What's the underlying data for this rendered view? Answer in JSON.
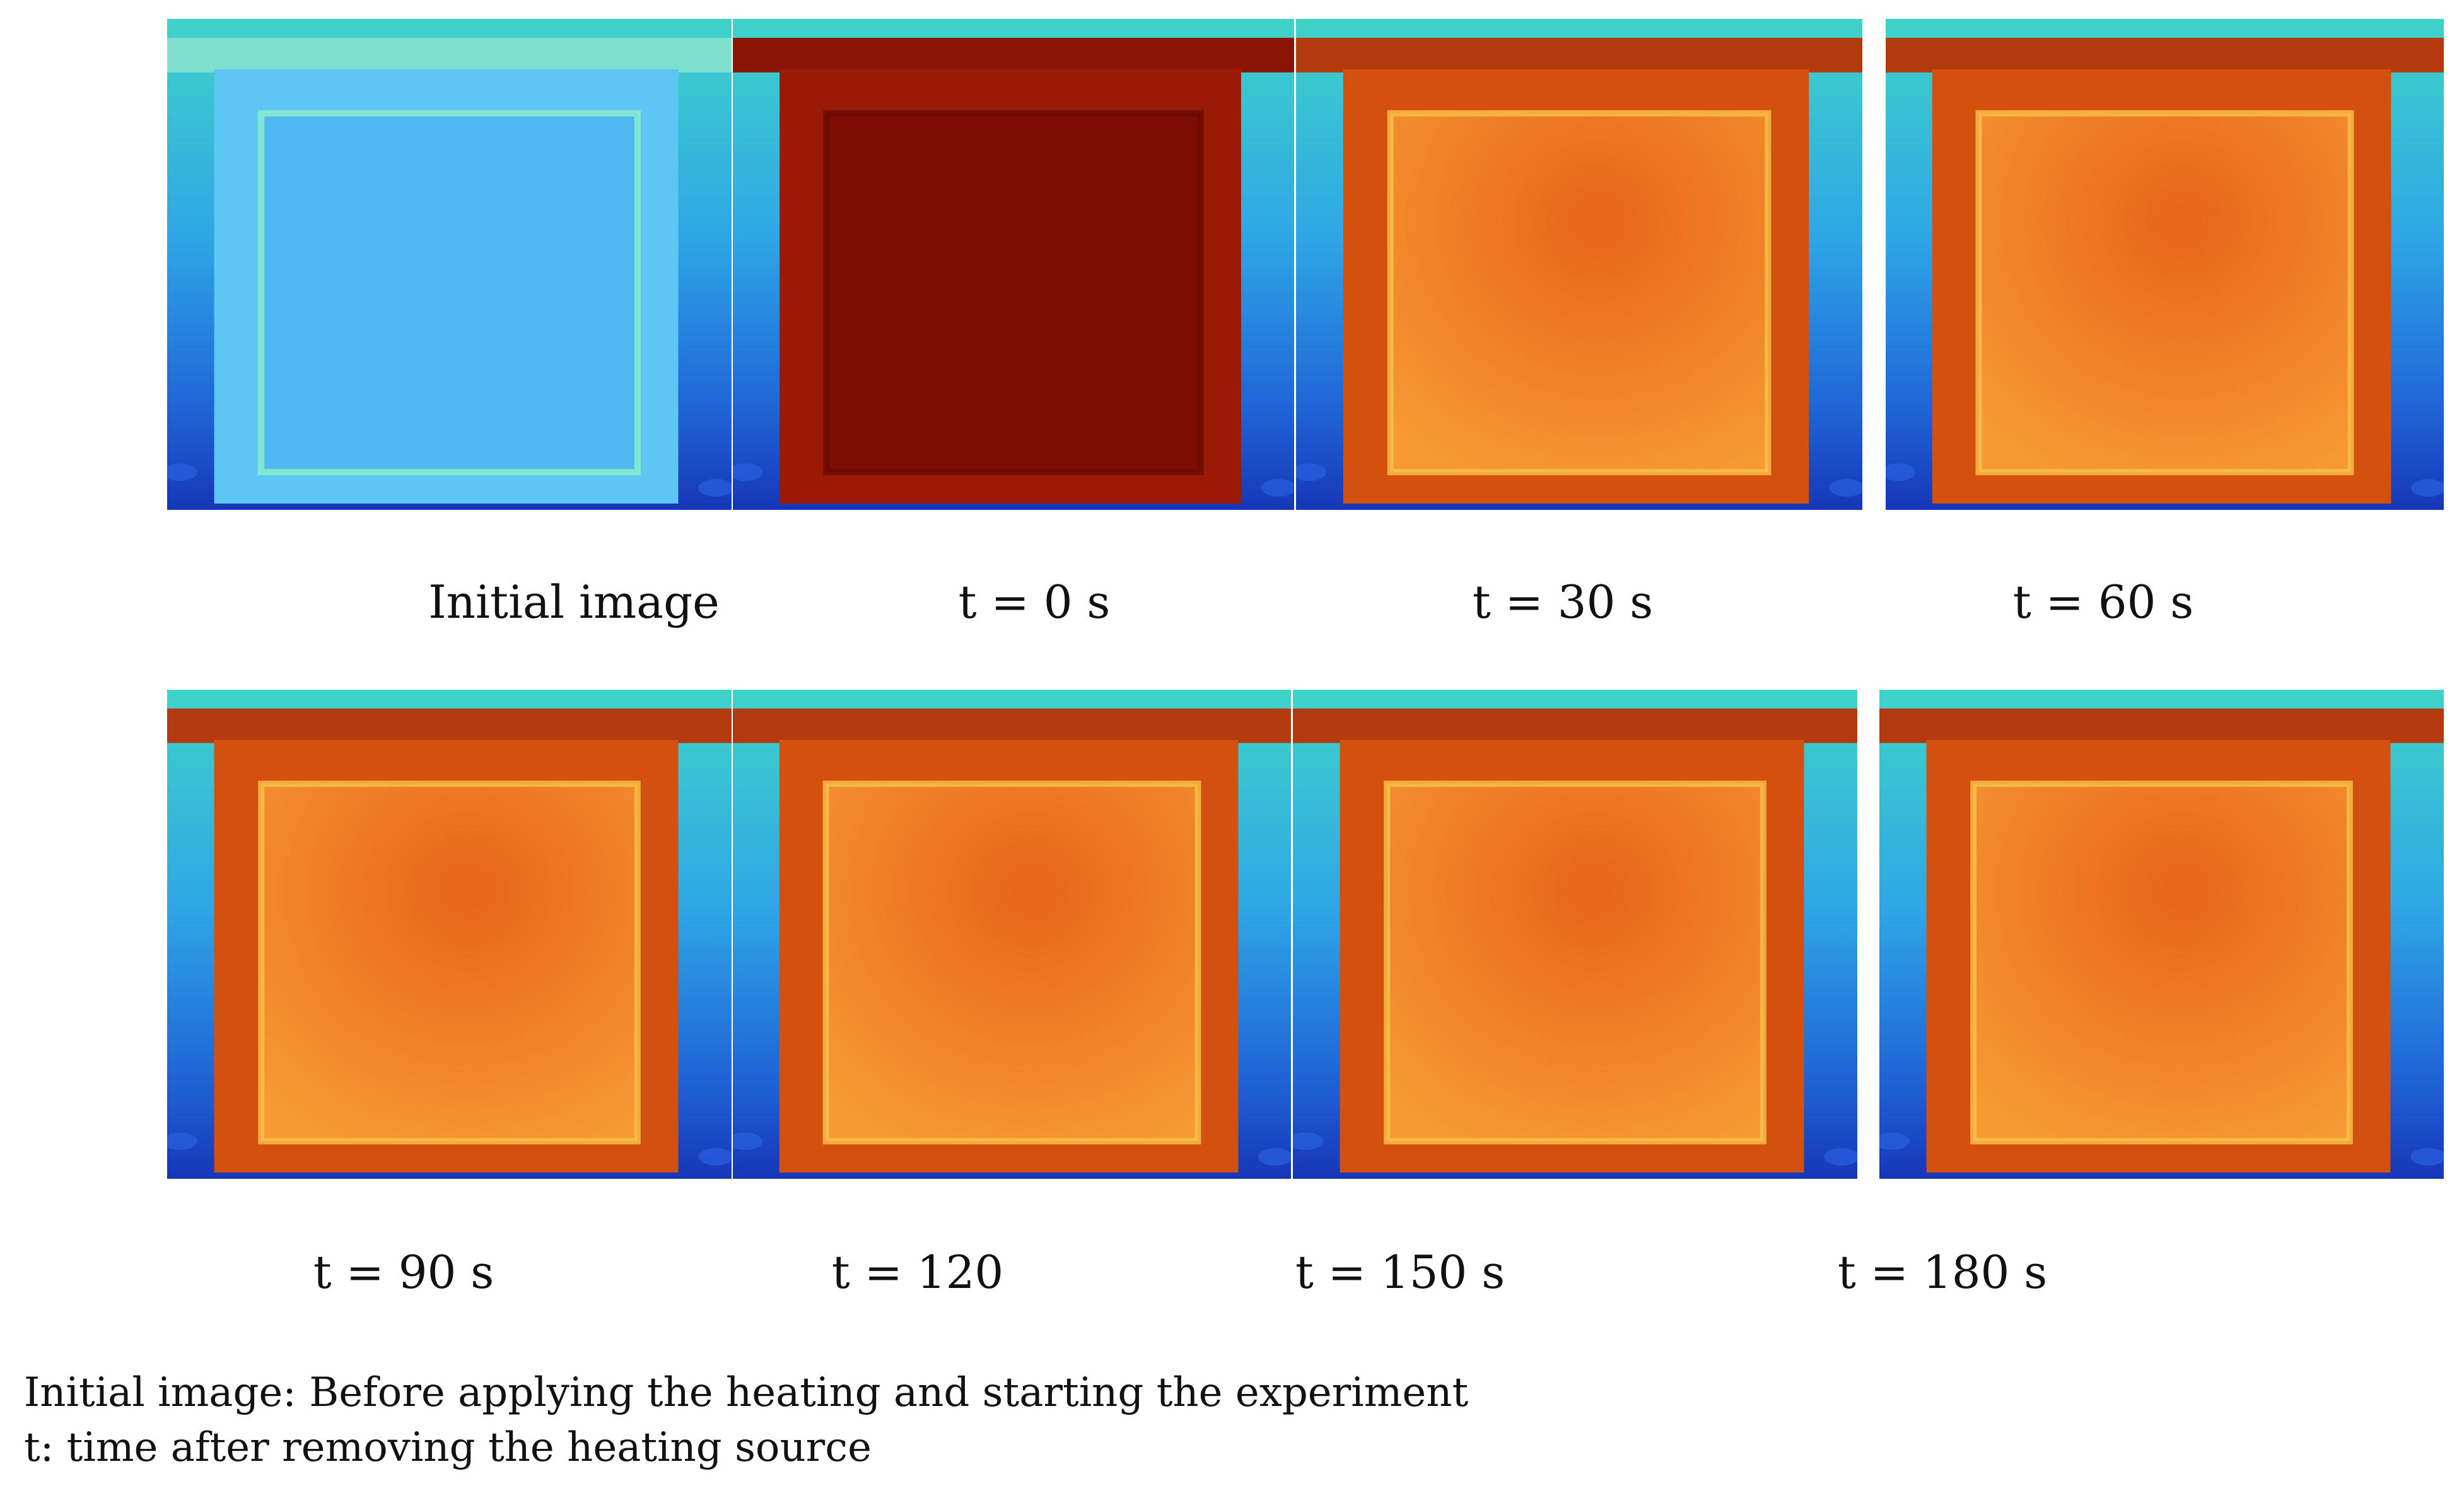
{
  "panels": [
    {
      "caption": "Initial image",
      "state": "cold"
    },
    {
      "caption": "t = 0 s",
      "state": "hot"
    },
    {
      "caption": "t = 30 s",
      "state": "warm"
    },
    {
      "caption": "t = 60 s",
      "state": "warm"
    },
    {
      "caption": "t = 90 s",
      "state": "warm"
    },
    {
      "caption": "t = 120",
      "state": "warm"
    },
    {
      "caption": "t = 150 s",
      "state": "warm"
    },
    {
      "caption": "t = 180 s",
      "state": "warm"
    }
  ],
  "notes": {
    "line1": "Initial image: Before applying the heating and starting the experiment",
    "line2": "t: time after removing the heating source"
  },
  "colors": {
    "cold_bg": "#3aa6e8",
    "cold_panel": "#4fb8f0",
    "hot_panel": "#7d0c02",
    "warm_panel": "#f07a1a",
    "warm_border": "#d4500e"
  }
}
